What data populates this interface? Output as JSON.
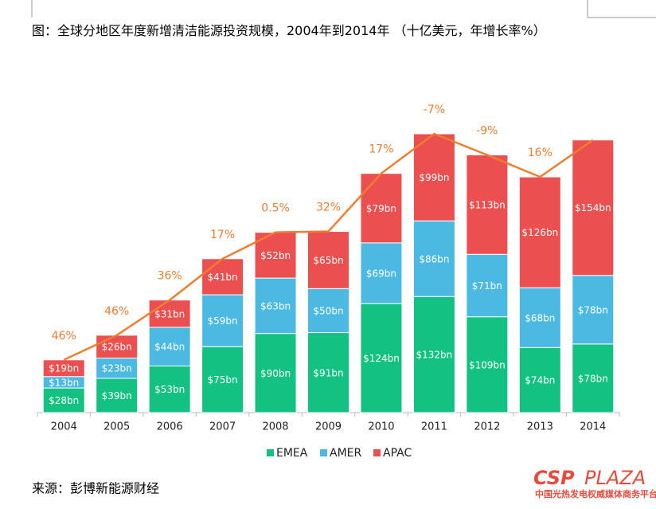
{
  "document": {
    "title": "图：全球分地区年度新增清洁能源投资规模，2004年到2014年 （十亿美元，年增长率%）",
    "source": "来源：彭博新能源财经",
    "logo": {
      "part1": "CSP",
      "part2": "PLAZA",
      "tagline": "中国光热发电权威媒体商务平台"
    }
  },
  "chart_data": {
    "type": "bar",
    "stacked": true,
    "categories": [
      "2004",
      "2005",
      "2006",
      "2007",
      "2008",
      "2009",
      "2010",
      "2011",
      "2012",
      "2013",
      "2014"
    ],
    "series": [
      {
        "name": "EMEA",
        "color": "#13c283",
        "values": [
          28,
          39,
          53,
          75,
          90,
          91,
          124,
          132,
          109,
          74,
          78
        ],
        "value_labels": [
          "$28bn",
          "$39bn",
          "$53bn",
          "$75bn",
          "$90bn",
          "$91bn",
          "$124bn",
          "$132bn",
          "$109bn",
          "$74bn",
          "$78bn"
        ]
      },
      {
        "name": "AMER",
        "color": "#4cb9e3",
        "values": [
          13,
          23,
          44,
          59,
          63,
          50,
          69,
          86,
          71,
          68,
          78
        ],
        "value_labels": [
          "$13bn",
          "$23bn",
          "$44bn",
          "$59bn",
          "$63bn",
          "$50bn",
          "$69bn",
          "$86bn",
          "$71bn",
          "$68bn",
          "$78bn"
        ]
      },
      {
        "name": "APAC",
        "color": "#eb4f4f",
        "values": [
          19,
          26,
          31,
          41,
          52,
          65,
          79,
          99,
          113,
          126,
          154
        ],
        "value_labels": [
          "$19bn",
          "$26bn",
          "$31bn",
          "$41bn",
          "$52bn",
          "$65bn",
          "$79bn",
          "$99bn",
          "$113bn",
          "$126bn",
          "$154bn"
        ]
      }
    ],
    "growth": {
      "type": "line",
      "color": "#ef7d31",
      "values": [
        46,
        46,
        36,
        17,
        0.5,
        32,
        17,
        -7,
        -9,
        16,
        null
      ],
      "value_labels": [
        "46%",
        "46%",
        "36%",
        "17%",
        "0.5%",
        "32%",
        "17%",
        "-7%",
        "-9%",
        "16%",
        null
      ]
    },
    "legend": "bottom"
  }
}
